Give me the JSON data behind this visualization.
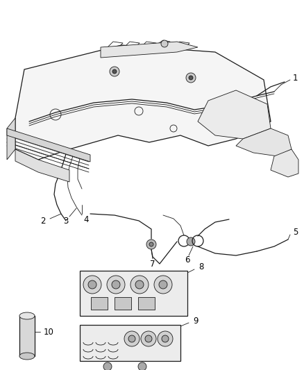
{
  "background_color": "#ffffff",
  "line_color": "#1a1a1a",
  "label_color": "#000000",
  "fig_width": 4.38,
  "fig_height": 5.33,
  "dpi": 100,
  "label_fontsize": 8.5,
  "thin_lw": 0.6,
  "med_lw": 0.9,
  "thick_lw": 1.3
}
